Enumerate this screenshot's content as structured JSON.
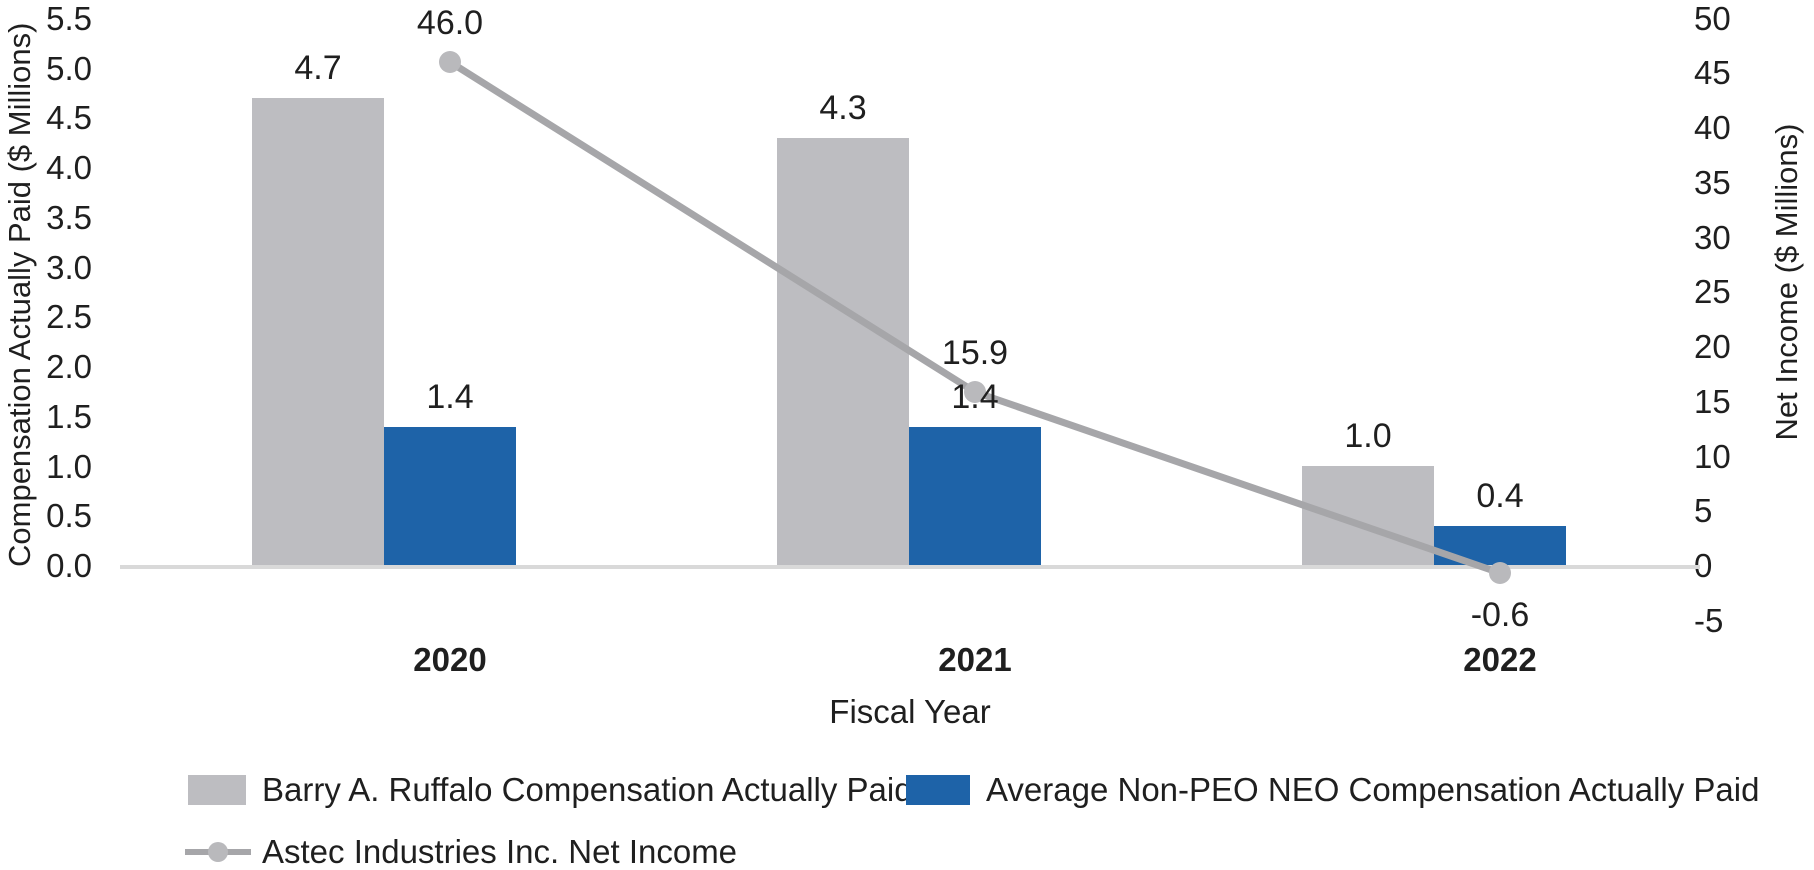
{
  "chart_data": {
    "type": "bar",
    "subtype": "combo-bar-line-dual-axis",
    "categories": [
      "2020",
      "2021",
      "2022"
    ],
    "series": [
      {
        "name": "Barry A. Ruffalo Compensation Actually Paid",
        "type": "bar",
        "axis": "left",
        "color": "#bdbdc1",
        "values": [
          4.7,
          4.3,
          1.0
        ],
        "labels": [
          "4.7",
          "4.3",
          "1.0"
        ]
      },
      {
        "name": "Average Non-PEO NEO Compensation Actually Paid",
        "type": "bar",
        "axis": "left",
        "color": "#1e63a8",
        "values": [
          1.4,
          1.4,
          0.4
        ],
        "labels": [
          "1.4",
          "1.4",
          "0.4"
        ]
      },
      {
        "name": "Astec Industries Inc. Net Income",
        "type": "line",
        "axis": "right",
        "color": "#a6a6a9",
        "marker_color": "#b9b9bc",
        "values": [
          46.0,
          15.9,
          -0.6
        ],
        "labels": [
          "46.0",
          "15.9",
          "-0.6"
        ]
      }
    ],
    "title": "",
    "xlabel": "Fiscal Year",
    "left_axis": {
      "title": "Compensation Actually Paid ($ Millions)",
      "min": 0.0,
      "max": 5.5,
      "step": 0.5,
      "tick_labels": [
        "0.0",
        "0.5",
        "1.0",
        "1.5",
        "2.0",
        "2.5",
        "3.0",
        "3.5",
        "4.0",
        "4.5",
        "5.0",
        "5.5"
      ]
    },
    "right_axis": {
      "title": "Net Income ($ Millions)",
      "min": -5,
      "max": 50,
      "step": 5,
      "tick_labels": [
        "-5",
        "0",
        "5",
        "10",
        "15",
        "20",
        "25",
        "30",
        "35",
        "40",
        "45",
        "50"
      ]
    },
    "grid": "off",
    "legend_position": "bottom"
  },
  "colors": {
    "bar_gray": "#bdbdc1",
    "bar_blue": "#1e63a8",
    "line_gray": "#a6a6a9",
    "marker_gray": "#b9b9bc",
    "axis_line": "#d9d9d9",
    "text": "#1f1f1f"
  }
}
